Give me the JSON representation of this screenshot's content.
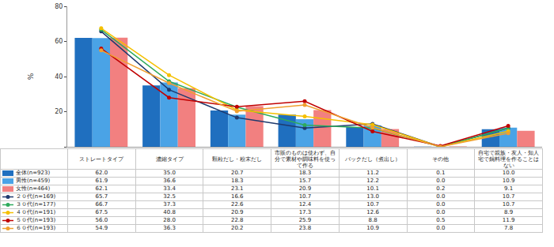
{
  "chart_data": {
    "type": "bar",
    "y_label": "%",
    "categories": [
      "ストレートタイプ",
      "濃縮タイプ",
      "顆粒だし・粉末だし",
      "市販のものは使わず、自分で素材や調味料を使って作る",
      "パックだし（煮出し）",
      "その他",
      "自宅で親族・友人・知人宅で鍋料理を作ることはない"
    ],
    "series": [
      {
        "name": "全体(n=923)",
        "type": "bar",
        "color": "#1f6fbf",
        "values": [
          62.0,
          35.0,
          20.7,
          18.3,
          11.2,
          0.1,
          10.0
        ],
        "value_labels": [
          "62.0",
          "35.0",
          "20.7",
          "18.3",
          "11.2",
          "0.1",
          "10.0"
        ]
      },
      {
        "name": "男性(n=459)",
        "type": "bar",
        "color": "#4aa3e6",
        "values": [
          61.9,
          36.6,
          18.3,
          15.7,
          12.2,
          0.0,
          10.9
        ],
        "value_labels": [
          "61.9",
          "36.6",
          "18.3",
          "15.7",
          "12.2",
          "0.0",
          "10.9"
        ]
      },
      {
        "name": "女性(n=464)",
        "type": "bar",
        "color": "#f28080",
        "values": [
          62.1,
          33.4,
          23.1,
          20.9,
          10.1,
          0.2,
          9.1
        ],
        "value_labels": [
          "62.1",
          "33.4",
          "23.1",
          "20.9",
          "10.1",
          "0.2",
          "9.1"
        ]
      },
      {
        "name": "２０代(n=169)",
        "type": "line",
        "marker": "circle",
        "color": "#1f3a6e",
        "values": [
          65.7,
          32.5,
          16.6,
          10.7,
          13.0,
          0.0,
          10.7
        ],
        "value_labels": [
          "65.7",
          "32.5",
          "16.6",
          "10.7",
          "13.0",
          "0.0",
          "10.7"
        ]
      },
      {
        "name": "３０代(n=177)",
        "type": "line",
        "marker": "circle",
        "color": "#2eaa5c",
        "values": [
          66.7,
          37.3,
          22.6,
          12.4,
          10.7,
          0.0,
          10.7
        ],
        "value_labels": [
          "66.7",
          "37.3",
          "22.6",
          "12.4",
          "10.7",
          "0.0",
          "10.7"
        ]
      },
      {
        "name": "４０代(n=191)",
        "type": "line",
        "marker": "circle",
        "color": "#f5c000",
        "values": [
          67.5,
          40.8,
          20.9,
          17.3,
          12.6,
          0.0,
          8.9
        ],
        "value_labels": [
          "67.5",
          "40.8",
          "20.9",
          "17.3",
          "12.6",
          "0.0",
          "8.9"
        ]
      },
      {
        "name": "５０代(n=193)",
        "type": "line",
        "marker": "circle",
        "color": "#c00000",
        "values": [
          56.0,
          28.0,
          22.8,
          25.9,
          8.8,
          0.5,
          11.9
        ],
        "value_labels": [
          "56.0",
          "28.0",
          "22.8",
          "25.9",
          "8.8",
          "0.5",
          "11.9"
        ]
      },
      {
        "name": "６０代(n=193)",
        "type": "line",
        "marker": "circle",
        "color": "#f0a030",
        "values": [
          54.9,
          36.3,
          20.2,
          23.8,
          10.9,
          0.0,
          7.8
        ],
        "value_labels": [
          "54.9",
          "36.3",
          "20.2",
          "23.8",
          "10.9",
          "0.0",
          "7.8"
        ]
      }
    ],
    "ylim": [
      0,
      80
    ],
    "yticks": [
      0,
      20,
      40,
      60,
      80
    ],
    "grid": false,
    "tick_labels": "y"
  }
}
